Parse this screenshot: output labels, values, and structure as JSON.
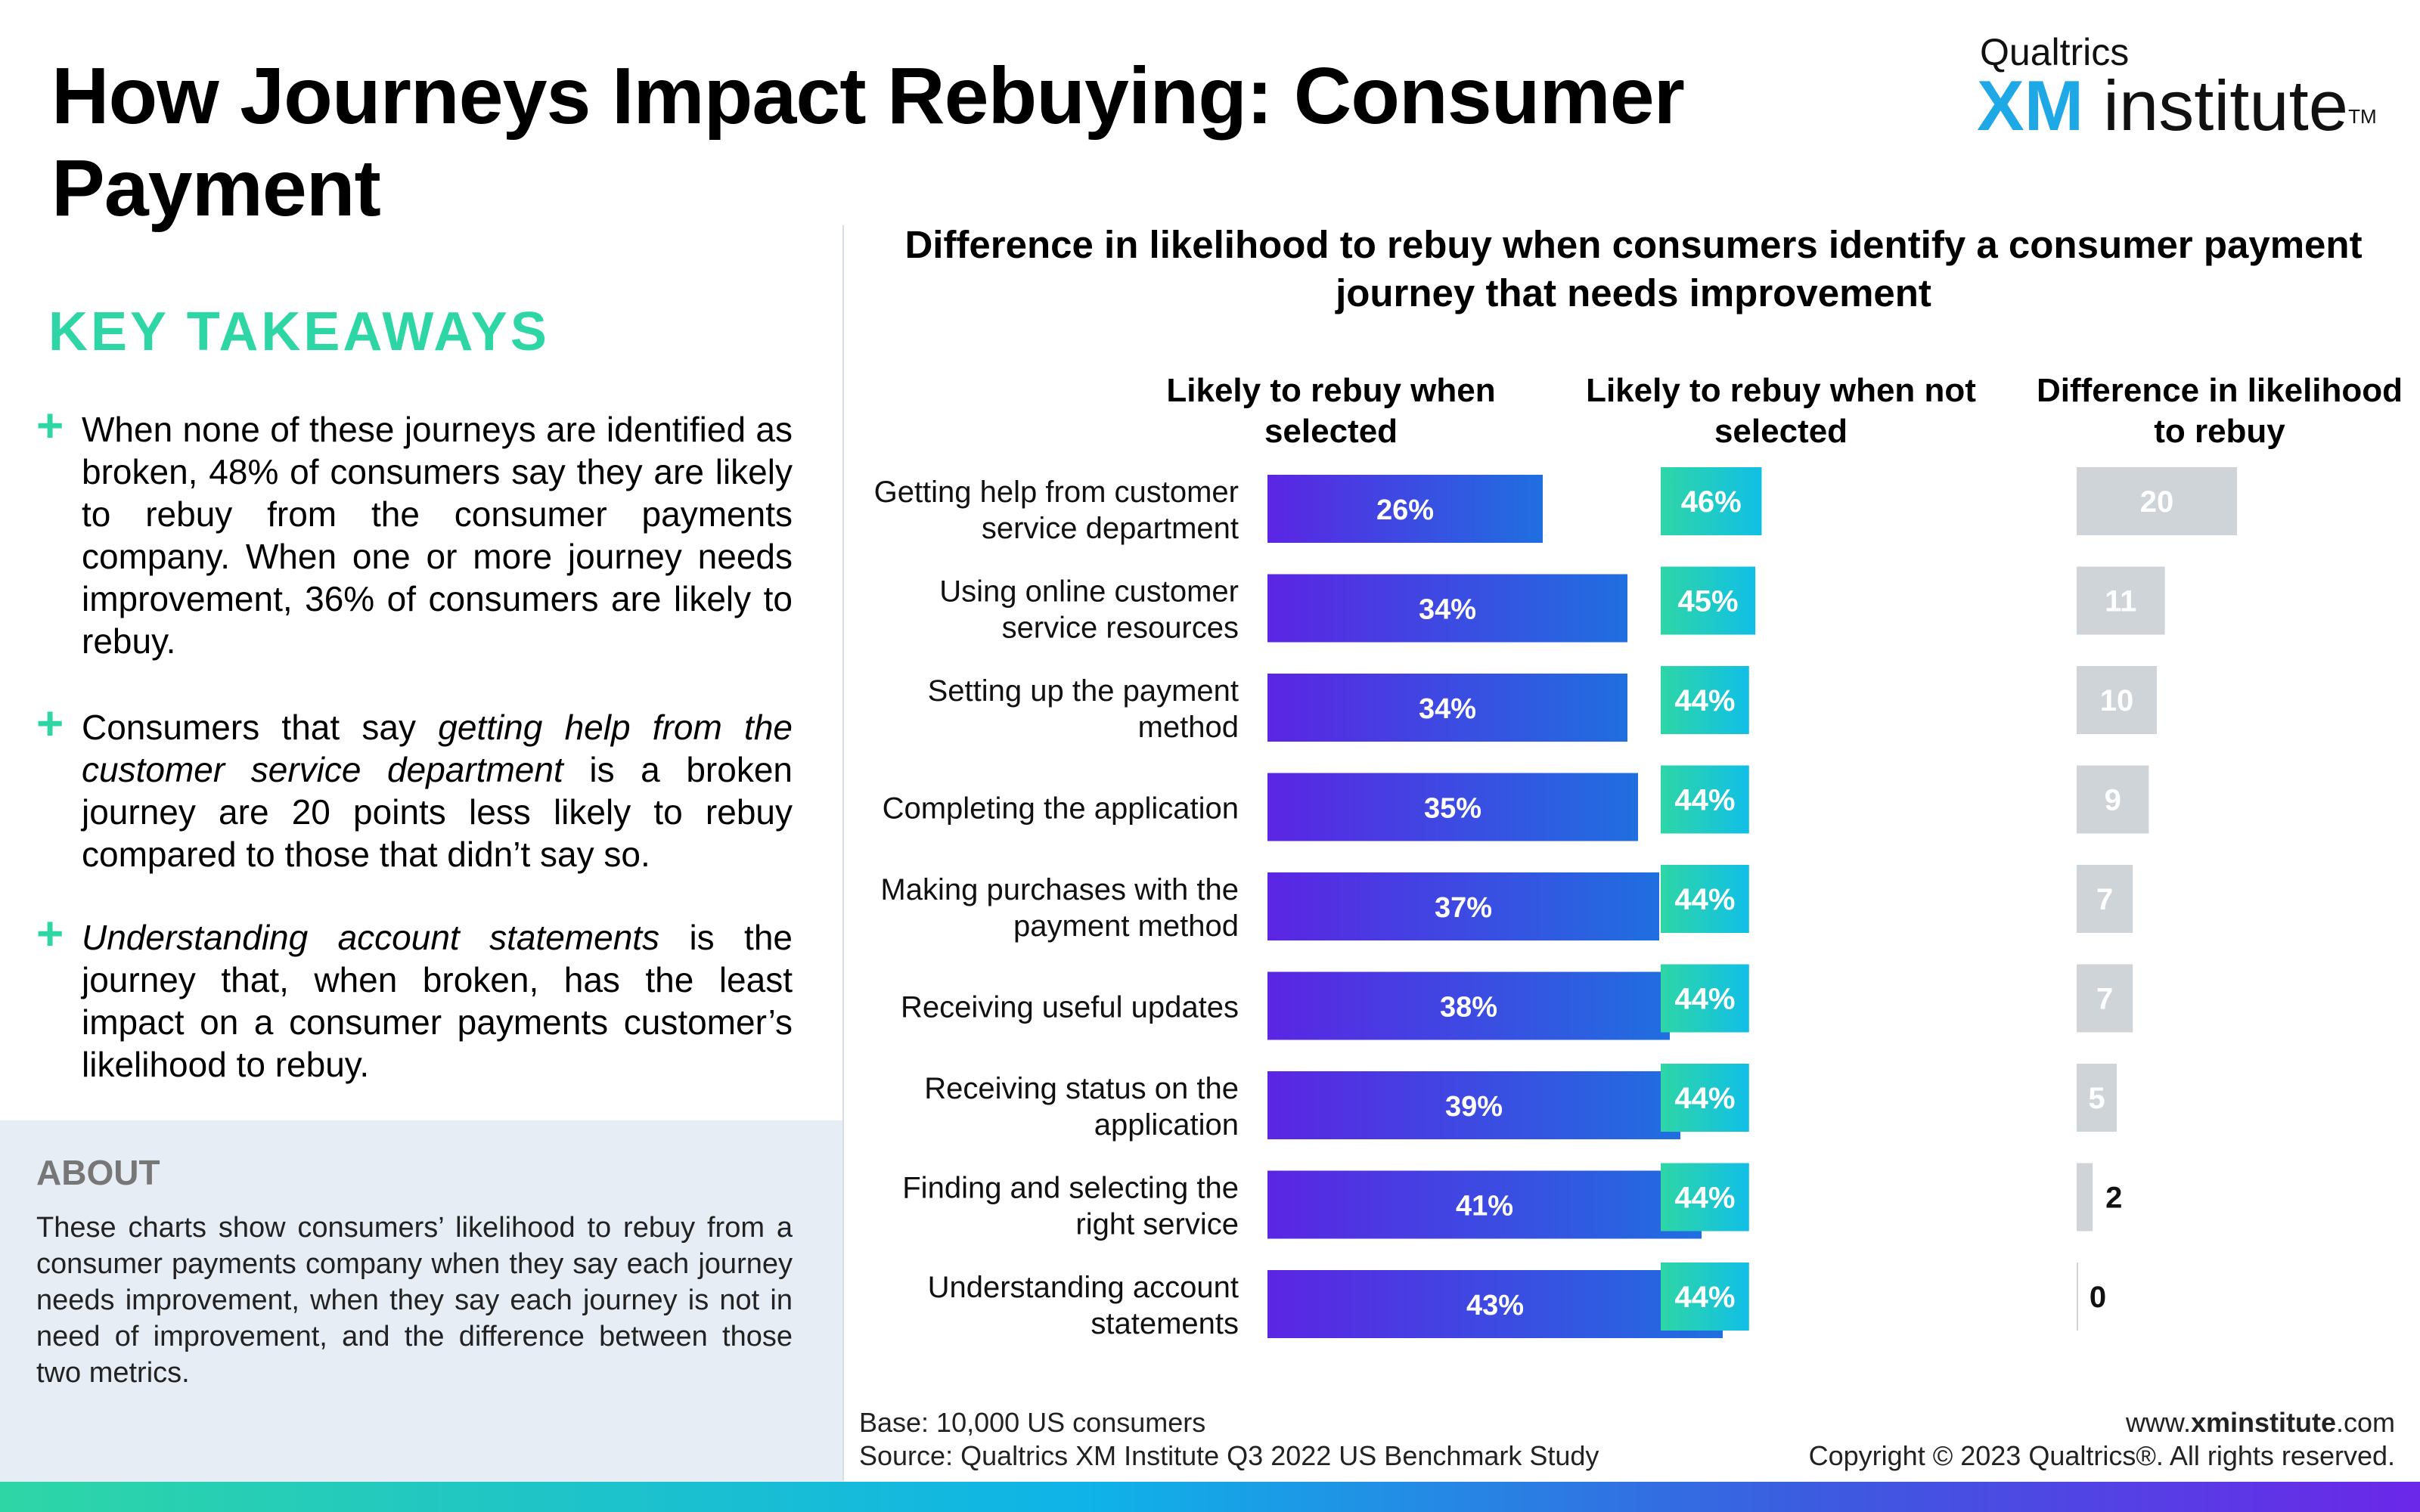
{
  "header": {
    "title": "How Journeys Impact Rebuying: Consumer Payment",
    "logo_top": "Qualtrics",
    "logo_xm": "XM",
    "logo_institute": "institute",
    "logo_tm": "TM"
  },
  "takeaways": {
    "heading": "KEY TAKEAWAYS",
    "t1": "When none of these journeys are identified as broken, 48% of consumers say they are likely to rebuy from the consumer payments company. When one or more journey needs improvement, 36% of consumers are likely to rebuy.",
    "t2_pre": "Consumers that say ",
    "t2_em": "getting help from the customer service department",
    "t2_post": " is a broken journey are 20 points less likely to rebuy compared to those that didn’t say so.",
    "t3_em": "Understanding account statements",
    "t3_post": " is the journey that, when broken, has the least impact on a consumer payments customer’s likelihood to rebuy."
  },
  "about": {
    "heading": "ABOUT",
    "text": "These charts show consumers’ likelihood to rebuy from a consumer payments company when they say each journey needs improvement, when they say each journey is not in need of improvement, and the difference between those two metrics."
  },
  "colors": {
    "selected_start": "#5b25e3",
    "selected_end": "#1f6fe0",
    "not_selected_start": "#2ed6a6",
    "not_selected_end": "#11bfe6",
    "difference": "#cfd4d9"
  },
  "chart_data": {
    "type": "bar",
    "title": "Difference in likelihood to rebuy when consumers identify a consumer payment journey that needs improvement",
    "column_headers": {
      "selected": "Likely to rebuy when selected",
      "not_selected": "Likely to rebuy when not selected",
      "difference": "Difference in likelihood to rebuy"
    },
    "categories": [
      [
        "Getting help from customer",
        "service department"
      ],
      [
        "Using online customer",
        "service resources"
      ],
      [
        "Setting up the payment",
        "method"
      ],
      [
        "Completing the application"
      ],
      [
        "Making purchases with the",
        "payment method"
      ],
      [
        "Receiving useful updates"
      ],
      [
        "Receiving status on the",
        "application"
      ],
      [
        "Finding and selecting the",
        "right service"
      ],
      [
        "Understanding account",
        "statements"
      ]
    ],
    "series": [
      {
        "name": "Likely to rebuy when selected",
        "values": [
          26,
          34,
          34,
          35,
          37,
          38,
          39,
          41,
          43
        ],
        "labels": [
          "26%",
          "34%",
          "34%",
          "35%",
          "37%",
          "38%",
          "39%",
          "41%",
          "43%"
        ]
      },
      {
        "name": "Likely to rebuy when not selected",
        "values": [
          46,
          45,
          44,
          44,
          44,
          44,
          44,
          44,
          44
        ],
        "labels": [
          "46%",
          "45%",
          "44%",
          "44%",
          "44%",
          "44%",
          "44%",
          "44%",
          "44%"
        ]
      },
      {
        "name": "Difference in likelihood to rebuy",
        "values": [
          20,
          11,
          10,
          9,
          7,
          7,
          5,
          2,
          0
        ],
        "labels": [
          "20",
          "11",
          "10",
          "9",
          "7",
          "7",
          "5",
          "2",
          "0"
        ]
      }
    ]
  },
  "footer": {
    "base": "Base: 10,000 US consumers",
    "source": "Source: Qualtrics XM Institute Q3 2022 US Benchmark Study",
    "url_pre": "www.",
    "url_bold": "xminstitute",
    "url_post": ".com",
    "copyright": "Copyright © 2023 Qualtrics®. All rights reserved."
  }
}
